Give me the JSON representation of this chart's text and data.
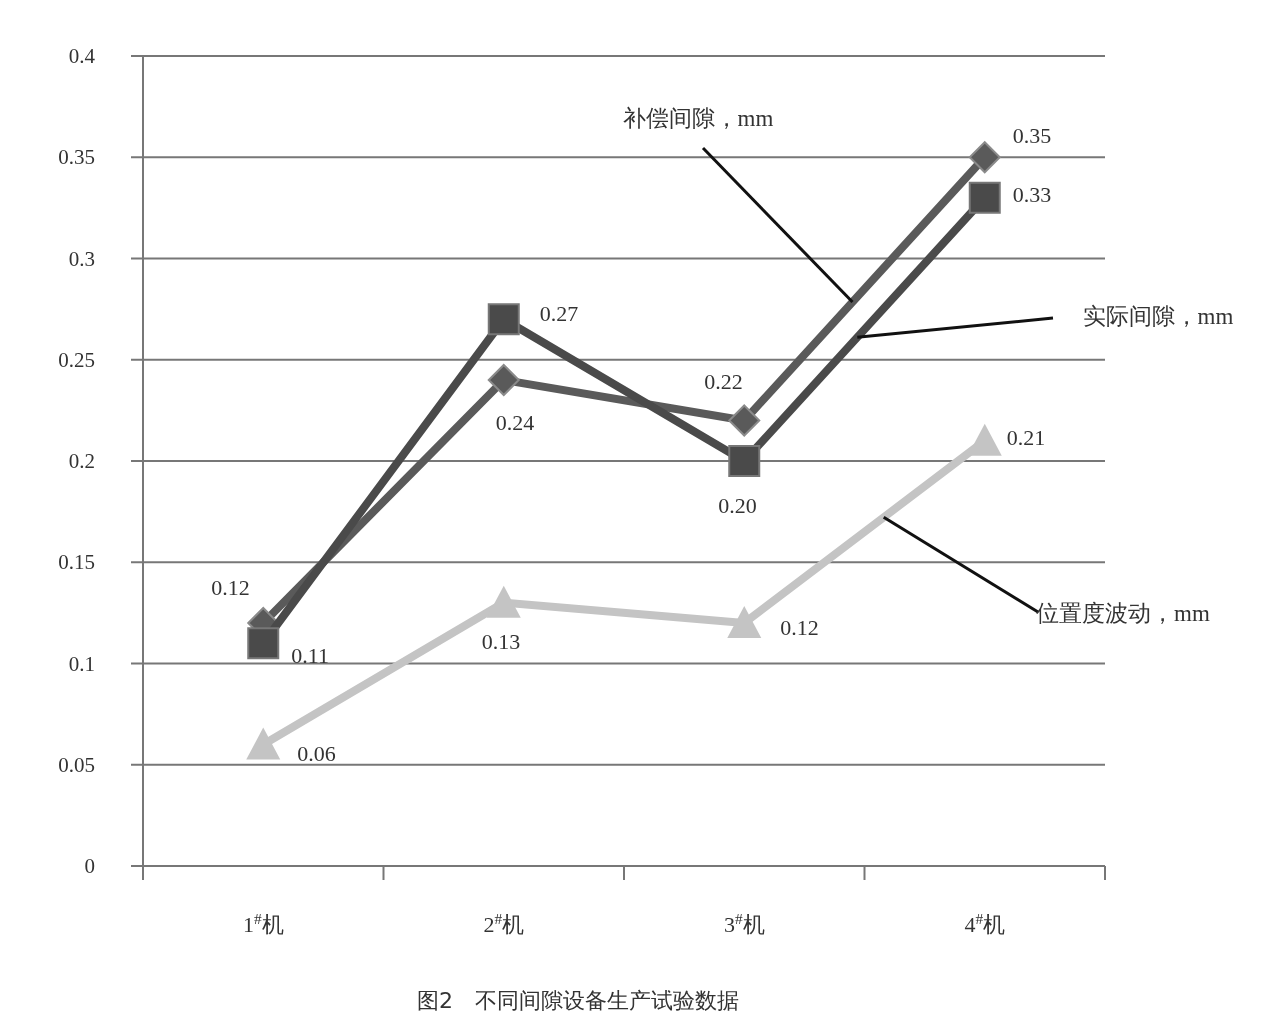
{
  "chart_data": {
    "type": "line",
    "title": "图2　不同间隙设备生产试验数据",
    "categories": [
      "1$^{#}$机",
      "2$^{#}$机",
      "3$^{#}$机",
      "4$^{#}$机"
    ],
    "series": [
      {
        "name": "补偿间隙，mm",
        "color": "#5a5a5a",
        "marker": "diamond",
        "values": [
          0.12,
          0.24,
          0.22,
          0.35
        ],
        "value_labels": [
          "0.12",
          "0.24",
          "0.22",
          "0.35"
        ]
      },
      {
        "name": "实际间隙，mm",
        "color": "#4a4a4a",
        "marker": "square",
        "values": [
          0.11,
          0.27,
          0.2,
          0.33
        ],
        "value_labels": [
          "0.11",
          "0.27",
          "0.20",
          "0.33"
        ]
      },
      {
        "name": "位置度波动，mm",
        "color": "#c4c4c4",
        "marker": "triangle",
        "values": [
          0.06,
          0.13,
          0.12,
          0.21
        ],
        "value_labels": [
          "0.06",
          "0.13",
          "0.12",
          "0.21"
        ]
      }
    ],
    "ylim": [
      0,
      0.4
    ],
    "yticks": [
      0,
      0.05,
      0.1,
      0.15,
      0.2,
      0.25,
      0.3,
      0.35,
      0.4
    ],
    "grid": "y",
    "legend": false,
    "line_style": "solid"
  }
}
